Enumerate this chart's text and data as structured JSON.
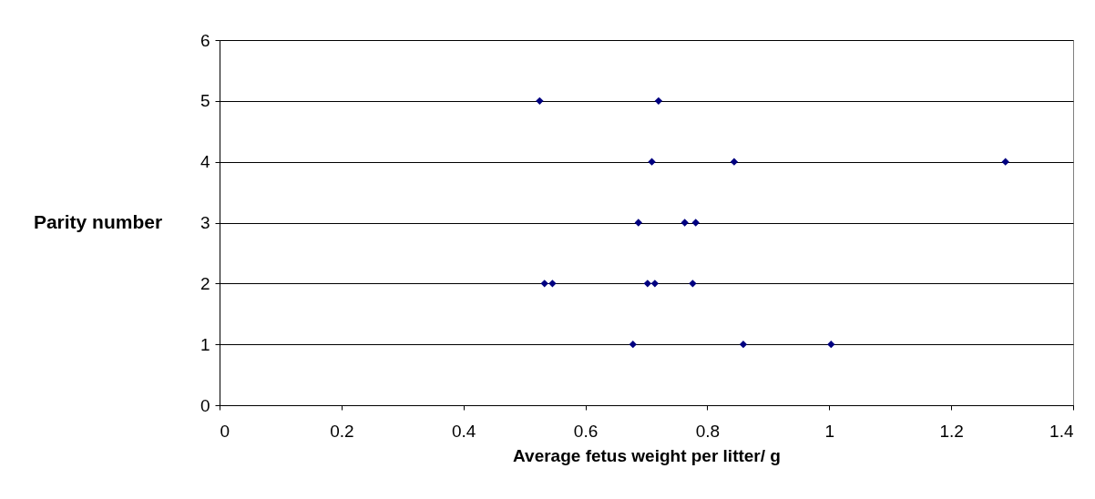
{
  "chart_data": {
    "type": "scatter",
    "xlabel": "Average fetus weight per litter/ g",
    "ylabel": "Parity number",
    "series": [
      {
        "color": "#000080",
        "x": [
          0.525,
          0.72,
          0.709,
          0.844,
          1.289,
          0.687,
          0.763,
          0.781,
          0.533,
          0.546,
          0.702,
          0.714,
          0.776,
          0.678,
          0.859,
          1.003
        ],
        "values": [
          5,
          5,
          4,
          4,
          4,
          3,
          3,
          3,
          2,
          2,
          2,
          2,
          2,
          1,
          1,
          1
        ]
      }
    ],
    "xlim": [
      0,
      1.4
    ],
    "xticks": [
      0,
      0.2,
      0.4,
      0.6,
      0.8,
      1,
      1.2,
      1.4
    ],
    "ylim": [
      0,
      6
    ],
    "yticks": [
      0,
      1,
      2,
      3,
      4,
      5,
      6
    ],
    "grid": "y",
    "marker": "diamond"
  }
}
